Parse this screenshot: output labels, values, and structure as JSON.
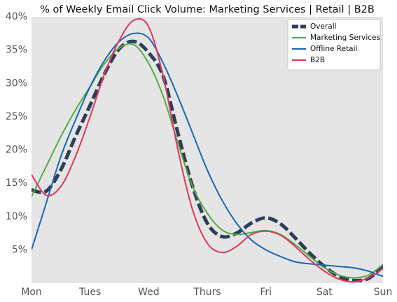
{
  "chart_data": {
    "type": "line",
    "title": "% of Weekly Email Click Volume: Marketing Services | Retail | B2B",
    "x": [
      0,
      0.25,
      0.5,
      0.75,
      1,
      1.25,
      1.5,
      1.75,
      2,
      2.25,
      2.5,
      2.75,
      3,
      3.25,
      3.5,
      3.75,
      4,
      4.25,
      4.5,
      4.75,
      5,
      5.25,
      5.5,
      5.75,
      6
    ],
    "xlim": [
      0,
      6
    ],
    "xticks": [
      {
        "value": 0,
        "label": "Mon"
      },
      {
        "value": 1,
        "label": "Tues"
      },
      {
        "value": 2,
        "label": "Wed"
      },
      {
        "value": 3,
        "label": "Thurs"
      },
      {
        "value": 4,
        "label": "Fri"
      },
      {
        "value": 5,
        "label": "Sat"
      },
      {
        "value": 6,
        "label": "Sun"
      }
    ],
    "ylim": [
      0,
      40
    ],
    "yticks": [
      {
        "value": 5,
        "label": "5%"
      },
      {
        "value": 10,
        "label": "10%"
      },
      {
        "value": 15,
        "label": "15%"
      },
      {
        "value": 20,
        "label": "20%"
      },
      {
        "value": 25,
        "label": "25%"
      },
      {
        "value": 30,
        "label": "30%"
      },
      {
        "value": 35,
        "label": "35%"
      },
      {
        "value": 40,
        "label": "40%"
      }
    ],
    "grid": false,
    "legend": "upper right",
    "series": [
      {
        "name": "Overall",
        "color": "#2f3e58",
        "dashed": true,
        "values": [
          14,
          13.8,
          17,
          22,
          26.7,
          31.5,
          35.2,
          36.3,
          34.6,
          31,
          22.5,
          14.5,
          9,
          7,
          7.5,
          9,
          9.8,
          8.9,
          6.8,
          4.5,
          2.5,
          1,
          0.4,
          0.7,
          2.5
        ]
      },
      {
        "name": "Marketing Services",
        "color": "#52ad47",
        "values": [
          13,
          17.5,
          22,
          26,
          29.5,
          33,
          35.3,
          35.8,
          33,
          28,
          21,
          14.5,
          10.5,
          8,
          7.3,
          7.6,
          7.9,
          7.3,
          5.8,
          4,
          2.3,
          1.2,
          0.8,
          1.2,
          2.8
        ]
      },
      {
        "name": "Offline Retail",
        "color": "#1768b8",
        "values": [
          5,
          12,
          19,
          24.5,
          29.5,
          33.5,
          36.3,
          37.5,
          36.8,
          33,
          28,
          22.5,
          17,
          12.5,
          9,
          6.5,
          5,
          4,
          3.2,
          2.9,
          2.7,
          2.5,
          2.3,
          1.8,
          1
        ]
      },
      {
        "name": "B2B",
        "color": "#e0375b",
        "values": [
          16.3,
          13.2,
          14.5,
          19,
          25,
          31.5,
          36.5,
          39.5,
          38.5,
          31,
          20,
          11,
          6,
          4.6,
          5.5,
          7.3,
          7.8,
          7.2,
          5.5,
          3.5,
          1.8,
          0.6,
          0.2,
          0.8,
          2.2
        ]
      }
    ]
  }
}
